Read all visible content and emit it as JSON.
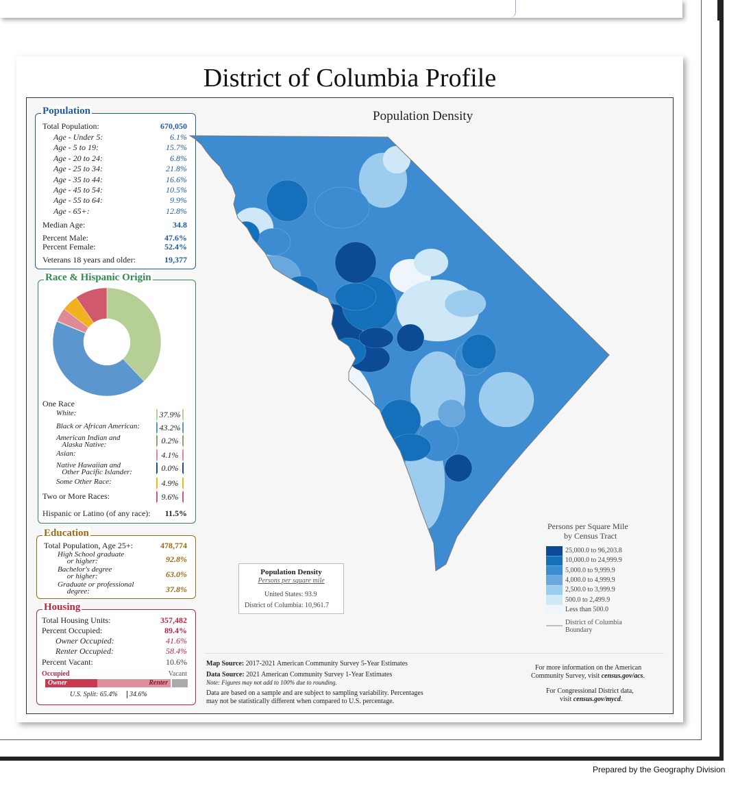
{
  "title": "District of Columbia Profile",
  "population": {
    "heading": "Population",
    "total_label": "Total Population:",
    "total_value": "670,050",
    "ages": [
      {
        "label": "Age - Under 5:",
        "value": "6.1%"
      },
      {
        "label": "Age - 5 to 19:",
        "value": "15.7%"
      },
      {
        "label": "Age - 20 to 24:",
        "value": "6.8%"
      },
      {
        "label": "Age - 25 to 34:",
        "value": "21.8%"
      },
      {
        "label": "Age - 35 to 44:",
        "value": "16.6%"
      },
      {
        "label": "Age - 45 to 54:",
        "value": "10.5%"
      },
      {
        "label": "Age - 55 to 64:",
        "value": "9.9%"
      },
      {
        "label": "Age - 65+:",
        "value": "12.8%"
      }
    ],
    "median_label": "Median Age:",
    "median_value": "34.8",
    "male_label": "Percent Male:",
    "male_value": "47.6%",
    "female_label": "Percent Female:",
    "female_value": "52.4%",
    "vet_label": "Veterans 18 years and older:",
    "vet_value": "19,377"
  },
  "race": {
    "heading": "Race & Hispanic Origin",
    "one_race": "One Race",
    "items": [
      {
        "label": "White:",
        "value": "37.9%",
        "color": "#b5cf96"
      },
      {
        "label": "Black or African American:",
        "value": "43.2%",
        "color": "#5b96cf"
      },
      {
        "label": "American Indian and",
        "label2": "Alaska Native:",
        "value": "0.2%",
        "color": "#7fa86a"
      },
      {
        "label": "Asian:",
        "value": "4.1%",
        "color": "#e08a96"
      },
      {
        "label": "Native Hawaiian and",
        "label2": "Other Pacific Islander:",
        "value": "0.0%",
        "color": "#1b4f99"
      },
      {
        "label": "Some Other Race:",
        "value": "4.9%",
        "color": "#f2b11e"
      }
    ],
    "two_more_label": "Two or More Races:",
    "two_more_value": "9.6%",
    "two_more_color": "#d05a6c",
    "hispanic_label": "Hispanic or Latino (of any race):",
    "hispanic_value": "11.5%"
  },
  "education": {
    "heading": "Education",
    "total_label": "Total Population, Age 25+:",
    "total_value": "478,774",
    "items": [
      {
        "l1": "High School  graduate",
        "l2": "or higher:",
        "value": "92.8%"
      },
      {
        "l1": "Bachelor's degree",
        "l2": "or higher:",
        "value": "63.0%"
      },
      {
        "l1": "Graduate or professional",
        "l2": "degree:",
        "value": "37.8%"
      }
    ]
  },
  "housing": {
    "heading": "Housing",
    "units_label": "Total Housing Units:",
    "units_value": "357,482",
    "occ_label": "Percent Occupied:",
    "occ_value": "89.4%",
    "owner_label": "Owner Occupied:",
    "owner_value": "41.6%",
    "renter_label": "Renter Occupied:",
    "renter_value": "58.4%",
    "vacant_label": "Percent Vacant:",
    "vacant_value": "10.6%",
    "bar_occupied": "Occupied",
    "bar_vacant": "Vacant",
    "bar_owner": "Owner",
    "bar_renter": "Renter",
    "split_label": "U.S. Split: 65.4%",
    "split_value": "34.6%"
  },
  "map": {
    "title": "Population Density",
    "legend_title1": "Persons per Square Mile",
    "legend_title2": "by Census Tract",
    "legend": [
      {
        "label": "25,000.0 to 96,203.8",
        "color": "#0b4a94"
      },
      {
        "label": "10,000.0 to 24,999.9",
        "color": "#1470ba"
      },
      {
        "label": "5,000.0 to 9,999.9",
        "color": "#3d8bd0"
      },
      {
        "label": "4,000.0 to 4,999.9",
        "color": "#6aa7dc"
      },
      {
        "label": "2,500.0 to 3,999.9",
        "color": "#9ccdee"
      },
      {
        "label": "500.0 to 2,499.9",
        "color": "#cfe8f8"
      },
      {
        "label": "Less than 500.0",
        "color": "#eef6fc"
      }
    ],
    "boundary_label1": "District of Columbia",
    "boundary_label2": "Boundary",
    "density_box_title": "Population Density",
    "density_box_sub": "Persons per square mile",
    "us_label": "United States:",
    "us_value": "93.9",
    "dc_label": "District of Columbia:",
    "dc_value": "10,961.7"
  },
  "sources": {
    "map_source_label": "Map Source:",
    "map_source": "2017-2021 American Community Survey 5-Year Estimates",
    "data_source_label": "Data Source:",
    "data_source": "2021 American Community Survey 1-Year Estimates",
    "note": "Note: Figures may not add to 100% due to rounding.",
    "sampling1": "Data are based on a sample and are subject to sampling variability. Percentages",
    "sampling2": "may not be statistically different when compared to U.S. percentage.",
    "info1": "For more information on the American",
    "info2a": "Community Survey, visit ",
    "info2b": "census.gov/acs",
    "info2c": ".",
    "cd1": "For Congressional District data,",
    "cd2a": "visit ",
    "cd2b": "census.gov/mycd",
    "cd2c": "."
  },
  "footer": "Prepared by the Geography Division"
}
